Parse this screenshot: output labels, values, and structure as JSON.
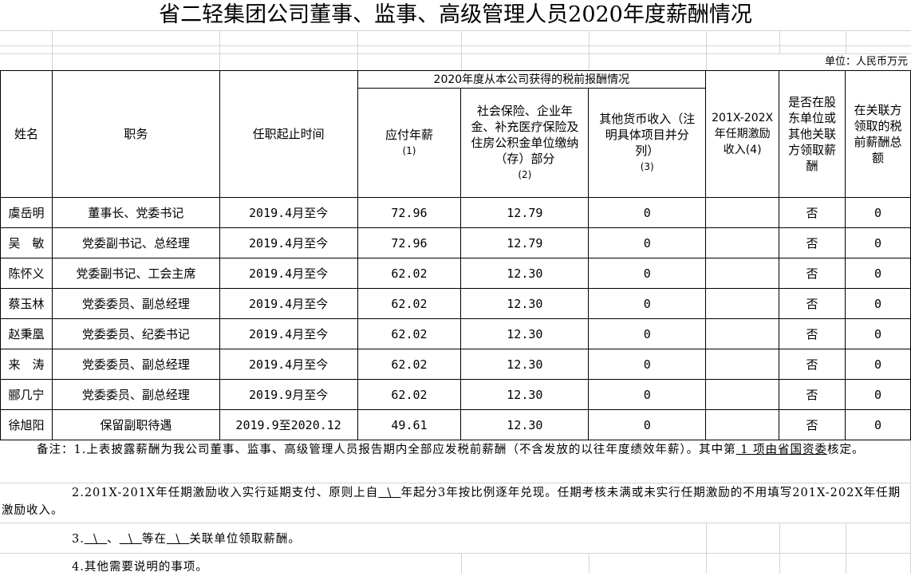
{
  "title": "省二轻集团公司董事、监事、高级管理人员2020年度薪酬情况",
  "unit": "单位：人民币万元",
  "headers": {
    "name": "姓名",
    "position": "职务",
    "term": "任职起止时间",
    "group": "2020年度从本公司获得的税前报酬情况",
    "salary": "应付年薪",
    "salary_no": "(1)",
    "insurance": "社会保险、企业年金、补充医疗保险及住房公积金单位缴纳（存）部分",
    "insurance_no": "(2)",
    "other": "其他货币收入（注明具体项目并分列）",
    "other_no": "(3)",
    "incentive": "201X-202X年任期激励收入(4)",
    "shareholder": "是否在股东单位或其他关联方领取薪酬",
    "related": "在关联方领取的税前薪酬总额"
  },
  "rows": [
    {
      "name": "虞岳明",
      "position": "董事长、党委书记",
      "term": "2019.4月至今",
      "salary": "72.96",
      "insurance": "12.79",
      "other": "0",
      "incentive": "",
      "shareholder": "否",
      "related": "0"
    },
    {
      "name": "吴　敏",
      "position": "党委副书记、总经理",
      "term": "2019.4月至今",
      "salary": "72.96",
      "insurance": "12.79",
      "other": "0",
      "incentive": "",
      "shareholder": "否",
      "related": "0"
    },
    {
      "name": "陈怀义",
      "position": "党委副书记、工会主席",
      "term": "2019.4月至今",
      "salary": "62.02",
      "insurance": "12.30",
      "other": "0",
      "incentive": "",
      "shareholder": "否",
      "related": "0"
    },
    {
      "name": "蔡玉林",
      "position": "党委委员、副总经理",
      "term": "2019.4月至今",
      "salary": "62.02",
      "insurance": "12.30",
      "other": "0",
      "incentive": "",
      "shareholder": "否",
      "related": "0"
    },
    {
      "name": "赵秉凰",
      "position": "党委委员、纪委书记",
      "term": "2019.4月至今",
      "salary": "62.02",
      "insurance": "12.30",
      "other": "0",
      "incentive": "",
      "shareholder": "否",
      "related": "0"
    },
    {
      "name": "来　涛",
      "position": "党委委员、副总经理",
      "term": "2019.4月至今",
      "salary": "62.02",
      "insurance": "12.30",
      "other": "0",
      "incentive": "",
      "shareholder": "否",
      "related": "0"
    },
    {
      "name": "郦几宁",
      "position": "党委委员、副总经理",
      "term": "2019.9月至今",
      "salary": "62.02",
      "insurance": "12.30",
      "other": "0",
      "incentive": "",
      "shareholder": "否",
      "related": "0"
    },
    {
      "name": "徐旭阳",
      "position": "保留副职待遇",
      "term": "2019.9至2020.12",
      "salary": "49.61",
      "insurance": "12.30",
      "other": "0",
      "incentive": "",
      "shareholder": "否",
      "related": "0"
    }
  ],
  "notes": {
    "n1a": "备注：1.上表披露薪酬为我公司董事、监事、高级管理人员报告期内全部应发税前薪酬（不含发放的以往年度绩效年薪）。其中第",
    "n1b": " 1 项由省国资委",
    "n1c": "核定。",
    "n2a": "2.201X-201X年任期激励收入实行延期支付、原则上自",
    "n2b": "  \\  ",
    "n2c": "年起分3年按比例逐年兑现。任期考核未满或未实行任期激励的不用填写201X-202X年任期激励收入。",
    "n3a": "3.",
    "n3b": "  \\  ",
    "n3c": "、",
    "n3d": "  \\  ",
    "n3e": "等在",
    "n3f": "  \\  ",
    "n3g": "关联单位领取薪酬。",
    "n4": "4.其他需要说明的事项。"
  }
}
